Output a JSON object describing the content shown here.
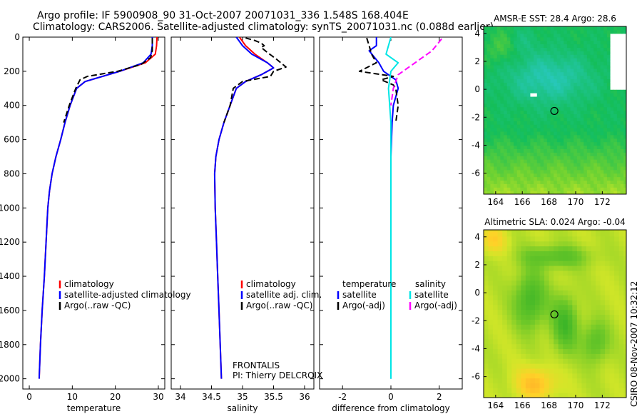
{
  "header": {
    "line1": "Argo profile: IF 5900908_90 31-Oct-2007 20071031_336 1.548S 168.404E",
    "line2": "Climatology: CARS2006. Satellite-adjusted climatology: synTS_20071031.nc (0.088d earlier)"
  },
  "side_stamp": "CSIRO 08-Nov-2007 10:32:12",
  "colors": {
    "climatology": "#ff0000",
    "satellite": "#0000ff",
    "argo": "#000000",
    "sal_satellite": "#00e5e5",
    "sal_argo": "#ff00ff"
  },
  "chart_data": [
    {
      "id": "temperature",
      "type": "line",
      "xlabel": "temperature",
      "xlim": [
        -1.5,
        31.5
      ],
      "xticks": [
        0,
        10,
        20,
        30
      ],
      "ylim": [
        0,
        2060
      ],
      "yticks": [
        0,
        200,
        400,
        600,
        800,
        1000,
        1200,
        1400,
        1600,
        1800,
        2000
      ],
      "y_reversed": true,
      "legend": [
        "climatology",
        "satellite-adjusted climatology",
        "Argo(..raw -QC)"
      ],
      "series": [
        {
          "name": "climatology",
          "color": "#ff0000",
          "style": "solid",
          "points": [
            [
              29.7,
              0
            ],
            [
              29.6,
              50
            ],
            [
              29.3,
              100
            ],
            [
              27,
              150
            ],
            [
              21,
              200
            ],
            [
              13,
              260
            ],
            [
              11,
              300
            ],
            [
              9.5,
              400
            ],
            [
              8.3,
              500
            ],
            [
              7.3,
              600
            ],
            [
              6.2,
              700
            ],
            [
              5.3,
              800
            ],
            [
              4.7,
              900
            ],
            [
              4.3,
              1000
            ],
            [
              3.9,
              1200
            ],
            [
              3.5,
              1400
            ],
            [
              3.0,
              1600
            ],
            [
              2.6,
              1800
            ],
            [
              2.3,
              2000
            ]
          ]
        },
        {
          "name": "satellite-adjusted climatology",
          "color": "#0000ff",
          "style": "solid",
          "points": [
            [
              28.6,
              0
            ],
            [
              28.6,
              50
            ],
            [
              28.3,
              100
            ],
            [
              26.5,
              150
            ],
            [
              21,
              200
            ],
            [
              13,
              260
            ],
            [
              11,
              300
            ],
            [
              9.5,
              400
            ],
            [
              8.3,
              500
            ],
            [
              7.3,
              600
            ],
            [
              6.2,
              700
            ],
            [
              5.3,
              800
            ],
            [
              4.7,
              900
            ],
            [
              4.3,
              1000
            ],
            [
              3.9,
              1200
            ],
            [
              3.5,
              1400
            ],
            [
              3.0,
              1600
            ],
            [
              2.6,
              1800
            ],
            [
              2.3,
              2000
            ]
          ]
        },
        {
          "name": "Argo(..raw -QC)",
          "color": "#000000",
          "style": "dashed",
          "points": [
            [
              28.6,
              5
            ],
            [
              28.6,
              80
            ],
            [
              28.2,
              120
            ],
            [
              26,
              160
            ],
            [
              20.5,
              200
            ],
            [
              13.5,
              230
            ],
            [
              11.8,
              250
            ],
            [
              10.8,
              300
            ],
            [
              9.3,
              400
            ],
            [
              8.0,
              500
            ]
          ]
        }
      ]
    },
    {
      "id": "salinity",
      "type": "line",
      "xlabel": "salinity",
      "xlim": [
        33.85,
        36.15
      ],
      "xticks": [
        34,
        34.5,
        35,
        35.5,
        36
      ],
      "ylim": [
        0,
        2060
      ],
      "y_reversed": true,
      "legend": [
        "climatology",
        "satellite adj. clim.",
        "Argo(..raw -QC)"
      ],
      "annotation": [
        "FRONTALIS",
        "PI: Thierry DELCROIX"
      ],
      "series": [
        {
          "name": "climatology",
          "color": "#ff0000",
          "style": "solid",
          "points": [
            [
              34.95,
              0
            ],
            [
              35.05,
              50
            ],
            [
              35.2,
              100
            ],
            [
              35.4,
              150
            ],
            [
              35.5,
              180
            ],
            [
              35.3,
              220
            ],
            [
              35.05,
              260
            ],
            [
              34.9,
              300
            ],
            [
              34.8,
              400
            ],
            [
              34.7,
              500
            ],
            [
              34.62,
              600
            ],
            [
              34.57,
              700
            ],
            [
              34.55,
              800
            ],
            [
              34.56,
              1000
            ],
            [
              34.58,
              1200
            ],
            [
              34.6,
              1400
            ],
            [
              34.62,
              1600
            ],
            [
              34.64,
              1800
            ],
            [
              34.66,
              2000
            ]
          ]
        },
        {
          "name": "satellite adj. clim.",
          "color": "#0000ff",
          "style": "solid",
          "points": [
            [
              34.9,
              0
            ],
            [
              35.0,
              50
            ],
            [
              35.15,
              100
            ],
            [
              35.4,
              150
            ],
            [
              35.5,
              180
            ],
            [
              35.3,
              220
            ],
            [
              35.05,
              260
            ],
            [
              34.9,
              300
            ],
            [
              34.8,
              400
            ],
            [
              34.7,
              500
            ],
            [
              34.62,
              600
            ],
            [
              34.57,
              700
            ],
            [
              34.55,
              800
            ],
            [
              34.56,
              1000
            ],
            [
              34.58,
              1200
            ],
            [
              34.6,
              1400
            ],
            [
              34.62,
              1600
            ],
            [
              34.64,
              1800
            ],
            [
              34.66,
              2000
            ]
          ]
        },
        {
          "name": "Argo(..raw -QC)",
          "color": "#000000",
          "style": "dashed",
          "points": [
            [
              35.05,
              5
            ],
            [
              35.2,
              20
            ],
            [
              35.3,
              35
            ],
            [
              35.35,
              50
            ],
            [
              35.3,
              60
            ],
            [
              35.4,
              90
            ],
            [
              35.55,
              130
            ],
            [
              35.7,
              175
            ],
            [
              35.5,
              200
            ],
            [
              35.45,
              230
            ],
            [
              35.0,
              260
            ],
            [
              34.85,
              300
            ],
            [
              34.8,
              400
            ],
            [
              34.7,
              500
            ]
          ]
        }
      ]
    },
    {
      "id": "difference",
      "type": "line",
      "xlabel": "difference from climatology",
      "xlim": [
        -2.95,
        2.95
      ],
      "xticks": [
        -2,
        0,
        2
      ],
      "ylim": [
        0,
        2060
      ],
      "y_reversed": true,
      "legend_left": {
        "heading": "temperature",
        "items": [
          "satellite",
          "Argo(-adj)"
        ]
      },
      "legend_right": {
        "heading": "salinity",
        "items": [
          "satellite",
          "Argo(-adj)"
        ]
      },
      "series": [
        {
          "name": "temperature satellite",
          "color": "#0000ff",
          "style": "solid",
          "points": [
            [
              -0.6,
              0
            ],
            [
              -0.6,
              50
            ],
            [
              -0.9,
              80
            ],
            [
              -0.5,
              150
            ],
            [
              -0.3,
              200
            ],
            [
              0.2,
              250
            ],
            [
              0.3,
              300
            ],
            [
              0.1,
              400
            ],
            [
              0.05,
              500
            ],
            [
              0,
              700
            ],
            [
              0,
              1000
            ],
            [
              0,
              1500
            ],
            [
              0,
              2000
            ]
          ]
        },
        {
          "name": "temperature Argo(-adj)",
          "color": "#000000",
          "style": "dashed",
          "points": [
            [
              -1.0,
              5
            ],
            [
              -0.9,
              50
            ],
            [
              -0.8,
              100
            ],
            [
              -0.6,
              150
            ],
            [
              -1.3,
              200
            ],
            [
              0.1,
              230
            ],
            [
              -0.4,
              250
            ],
            [
              0.1,
              280
            ],
            [
              0.2,
              300
            ],
            [
              0.3,
              400
            ],
            [
              0.2,
              500
            ]
          ]
        },
        {
          "name": "salinity satellite",
          "color": "#00e5e5",
          "style": "solid",
          "points": [
            [
              0,
              0
            ],
            [
              -0.2,
              100
            ],
            [
              0.3,
              150
            ],
            [
              0,
              200
            ],
            [
              -0.1,
              300
            ],
            [
              0,
              500
            ],
            [
              0,
              1000
            ],
            [
              0,
              1500
            ],
            [
              0,
              2000
            ]
          ]
        },
        {
          "name": "salinity Argo(-adj)",
          "color": "#ff00ff",
          "style": "dashed",
          "points": [
            [
              2.1,
              10
            ],
            [
              1.7,
              80
            ],
            [
              1.0,
              150
            ],
            [
              0.5,
              200
            ],
            [
              0.3,
              220
            ],
            [
              0.1,
              300
            ],
            [
              0,
              400
            ]
          ]
        }
      ]
    },
    {
      "id": "sst_map",
      "type": "heatmap",
      "title": "AMSR-E SST: 28.4 Argo: 28.6",
      "xlim": [
        163.1,
        173.8
      ],
      "xticks": [
        164,
        166,
        168,
        170,
        172
      ],
      "ylim": [
        -7.5,
        4.5
      ],
      "yticks": [
        -6,
        -4,
        -2,
        0,
        2,
        4
      ],
      "marker": [
        168.404,
        -1.548
      ]
    },
    {
      "id": "sla_map",
      "type": "heatmap",
      "title": "Altimetric SLA: 0.024 Argo: -0.04",
      "xlim": [
        163.1,
        173.8
      ],
      "xticks": [
        164,
        166,
        168,
        170,
        172
      ],
      "ylim": [
        -7.5,
        4.5
      ],
      "yticks": [
        -6,
        -4,
        -2,
        0,
        2,
        4
      ],
      "marker": [
        168.404,
        -1.548
      ]
    }
  ]
}
